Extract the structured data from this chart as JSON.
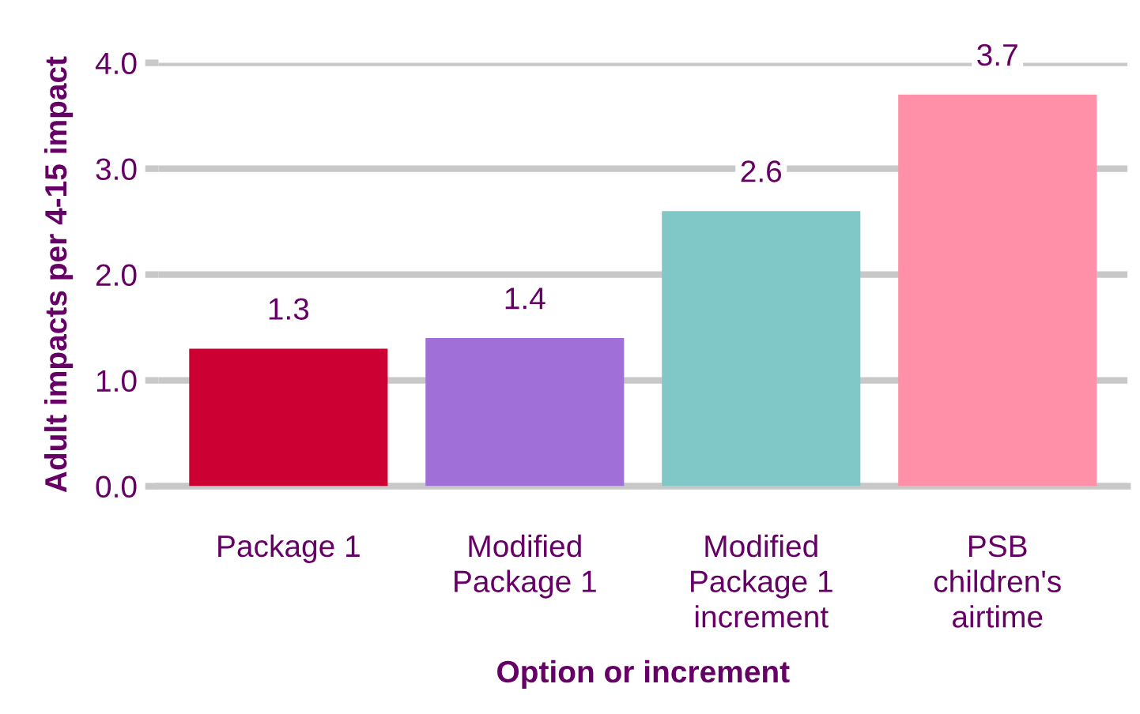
{
  "chart_data": {
    "type": "bar",
    "xlabel": "Option or increment",
    "ylabel": "Adult impacts per 4-15 impact",
    "categories": [
      "Package 1",
      "Modified\nPackage 1",
      "Modified\nPackage 1\nincrement",
      "PSB\nchildren's\nairtime"
    ],
    "values": [
      1.3,
      1.4,
      2.6,
      3.7
    ],
    "colors": [
      "#cc0033",
      "#a070d8",
      "#80c8c8",
      "#ff90a8"
    ],
    "ylim": [
      0,
      4
    ],
    "yticks": [
      {
        "value": 0,
        "label": "0.0"
      },
      {
        "value": 1,
        "label": "1.0"
      },
      {
        "value": 2,
        "label": "2.0"
      },
      {
        "value": 3,
        "label": "3.0"
      },
      {
        "value": 4,
        "label": "4.0"
      }
    ],
    "grid": "y",
    "data_labels": true
  }
}
